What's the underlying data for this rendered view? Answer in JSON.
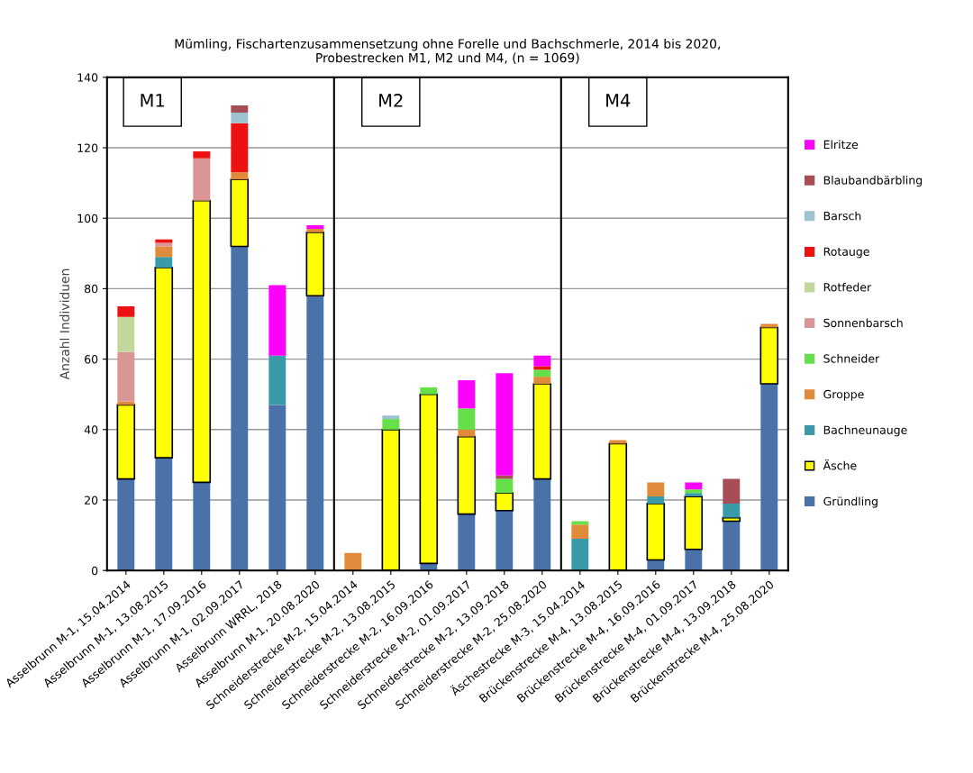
{
  "chart_data": {
    "type": "bar",
    "stacked": true,
    "title": "Mümling, Fischartenzusammensetzung ohne Forelle und Bachschmerle, 2014 bis 2020,\nProbestrecken M1, M2 und M4, (n = 1069)",
    "ylabel": "Anzahl Individuen",
    "categories": [
      "Asselbrunn M-1, 15.04.2014",
      "Asselbrunn M-1, 13.08.2015",
      "Asselbrunn M-1, 17.09.2016",
      "Asselbrunn M-1, 02.09.2017",
      "Asselbrunn WRRL, 2018",
      "Asselbrunn M-1, 20.08.2020",
      "Schneiderstrecke M-2, 15.04.2014",
      "Schneiderstrecke M-2, 13.08.2015",
      "Schneiderstrecke M-2, 16.09.2016",
      "Schneiderstrecke M-2, 01.09.2017",
      "Schneiderstrecke M-2, 13.09.2018",
      "Schneiderstrecke M-2, 25.08.2020",
      "Äschestrecke M-3, 15.04.2014",
      "Brückenstrecke M-4, 13.08.2015",
      "Brückenstrecke M-4, 16.09.2016",
      "Brückenstrecke M-4, 01.09.2017",
      "Brückenstrecke M-4, 13.09.2018",
      "Brückenstrecke M-4, 25.08.2020"
    ],
    "series": [
      {
        "name": "Gründling",
        "color": "#4a72a8",
        "values": [
          26,
          32,
          25,
          92,
          47,
          78,
          0,
          0,
          2,
          16,
          17,
          26,
          0,
          0,
          3,
          6,
          14,
          53
        ]
      },
      {
        "name": "Äsche",
        "color": "#ffff00",
        "values": [
          21,
          54,
          80,
          19,
          0,
          18,
          0,
          40,
          48,
          22,
          5,
          27,
          0,
          36,
          16,
          15,
          1,
          16
        ]
      },
      {
        "name": "Bachneunauge",
        "color": "#3b9aa8",
        "values": [
          0,
          3,
          0,
          0,
          14,
          0,
          0,
          0,
          0,
          0,
          0,
          0,
          9,
          0,
          2,
          1,
          4,
          0
        ]
      },
      {
        "name": "Groppe",
        "color": "#e08a3c",
        "values": [
          1,
          3,
          0,
          2,
          0,
          1,
          5,
          0,
          0,
          2,
          0,
          2,
          4,
          1,
          4,
          0,
          0,
          1
        ]
      },
      {
        "name": "Schneider",
        "color": "#66e04a",
        "values": [
          0,
          0,
          0,
          0,
          0,
          0,
          0,
          3,
          2,
          6,
          4,
          2,
          1,
          0,
          0,
          1,
          0,
          0
        ]
      },
      {
        "name": "Sonnenbarsch",
        "color": "#d99694",
        "values": [
          14,
          1,
          12,
          0,
          0,
          0,
          0,
          0,
          0,
          0,
          0,
          0,
          0,
          0,
          0,
          0,
          0,
          0
        ]
      },
      {
        "name": "Rotfeder",
        "color": "#c3d69b",
        "values": [
          10,
          0,
          0,
          0,
          0,
          0,
          0,
          0,
          0,
          0,
          0,
          0,
          0,
          0,
          0,
          0,
          0,
          0
        ]
      },
      {
        "name": "Rotauge",
        "color": "#ee1111",
        "values": [
          3,
          1,
          2,
          14,
          0,
          0,
          0,
          0,
          0,
          0,
          0,
          1,
          0,
          0,
          0,
          0,
          0,
          0
        ]
      },
      {
        "name": "Barsch",
        "color": "#9dc3d0",
        "values": [
          0,
          0,
          0,
          3,
          0,
          0,
          0,
          1,
          0,
          0,
          0,
          0,
          0,
          0,
          0,
          0,
          0,
          0
        ]
      },
      {
        "name": "Blaubandbärbling",
        "color": "#a64d55",
        "values": [
          0,
          0,
          0,
          2,
          0,
          0,
          0,
          0,
          0,
          0,
          1,
          0,
          0,
          0,
          0,
          0,
          7,
          0
        ]
      },
      {
        "name": "Elritze",
        "color": "#ff00ff",
        "values": [
          0,
          0,
          0,
          0,
          20,
          1,
          0,
          0,
          0,
          8,
          29,
          3,
          0,
          0,
          0,
          2,
          0,
          0
        ]
      }
    ],
    "ylim": [
      0,
      140
    ],
    "yticks": [
      0,
      20,
      40,
      60,
      80,
      100,
      120,
      140
    ],
    "grid": "y",
    "legend": "right",
    "annotations": [
      "M1",
      "M2",
      "M4"
    ]
  }
}
